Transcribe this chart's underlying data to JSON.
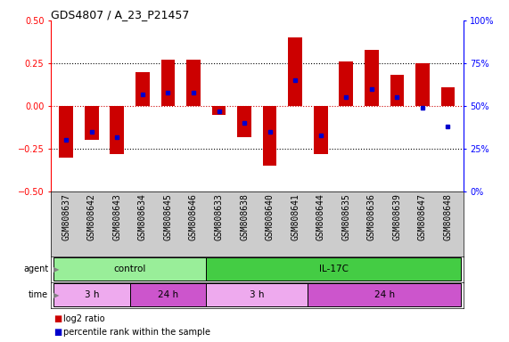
{
  "title": "GDS4807 / A_23_P21457",
  "samples": [
    "GSM808637",
    "GSM808642",
    "GSM808643",
    "GSM808634",
    "GSM808645",
    "GSM808646",
    "GSM808633",
    "GSM808638",
    "GSM808640",
    "GSM808641",
    "GSM808644",
    "GSM808635",
    "GSM808636",
    "GSM808639",
    "GSM808647",
    "GSM808648"
  ],
  "log2_ratio": [
    -0.3,
    -0.2,
    -0.28,
    0.2,
    0.27,
    0.27,
    -0.05,
    -0.18,
    -0.35,
    0.4,
    -0.28,
    0.26,
    0.33,
    0.18,
    0.25,
    0.11
  ],
  "percentile": [
    30,
    35,
    32,
    57,
    58,
    58,
    47,
    40,
    35,
    65,
    33,
    55,
    60,
    55,
    49,
    38
  ],
  "ylim": [
    -0.5,
    0.5
  ],
  "yticks_left": [
    -0.5,
    -0.25,
    0.0,
    0.25,
    0.5
  ],
  "yticks_right": [
    0,
    25,
    50,
    75,
    100
  ],
  "bar_color": "#cc0000",
  "dot_color": "#0000cc",
  "zero_line_color": "#cc0000",
  "grid_color": "#000000",
  "plot_bg": "#ffffff",
  "agent_groups": [
    {
      "label": "control",
      "start": 0,
      "end": 6,
      "color": "#99ee99"
    },
    {
      "label": "IL-17C",
      "start": 6,
      "end": 16,
      "color": "#44cc44"
    }
  ],
  "time_groups": [
    {
      "label": "3 h",
      "start": 0,
      "end": 3,
      "color": "#eeaaee"
    },
    {
      "label": "24 h",
      "start": 3,
      "end": 6,
      "color": "#cc55cc"
    },
    {
      "label": "3 h",
      "start": 6,
      "end": 10,
      "color": "#eeaaee"
    },
    {
      "label": "24 h",
      "start": 10,
      "end": 16,
      "color": "#cc55cc"
    }
  ],
  "legend_items": [
    {
      "label": "log2 ratio",
      "color": "#cc0000"
    },
    {
      "label": "percentile rank within the sample",
      "color": "#0000cc"
    }
  ],
  "bar_width": 0.55,
  "sample_bg": "#cccccc",
  "label_fontsize": 7,
  "tick_fontsize": 7,
  "title_fontsize": 9
}
